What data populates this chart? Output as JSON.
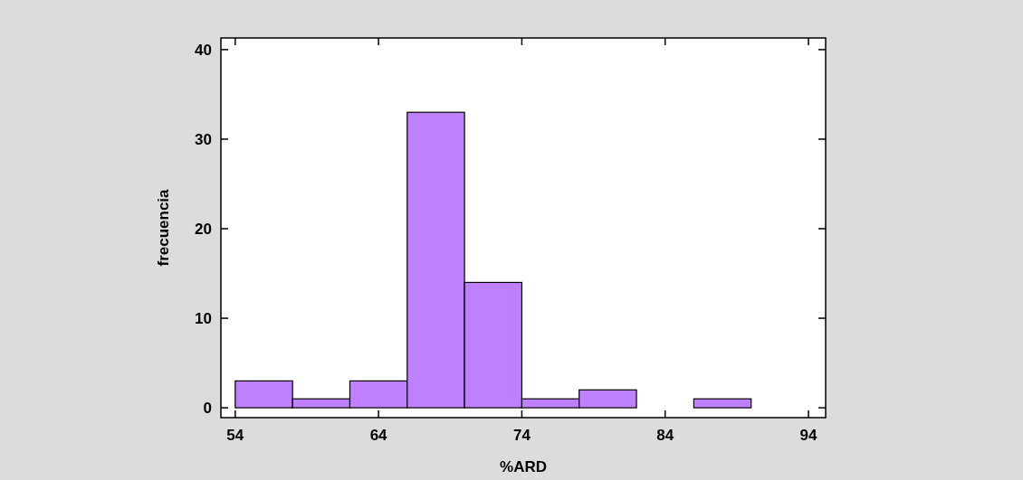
{
  "chart_data": {
    "type": "histogram",
    "xlabel": "%ARD",
    "ylabel": "frecuencia",
    "bins": [
      54,
      58,
      62,
      66,
      70,
      74,
      78,
      82,
      86,
      90
    ],
    "values": [
      3,
      1,
      3,
      33,
      14,
      1,
      2,
      0,
      1
    ],
    "color": "#bf80ff",
    "xlim": [
      53,
      95.2
    ],
    "xticks": [
      54,
      64,
      74,
      84,
      94
    ],
    "ylim": [
      -1.1,
      41.3
    ],
    "yticks": [
      0,
      10,
      20,
      30,
      40
    ],
    "grid": false
  }
}
